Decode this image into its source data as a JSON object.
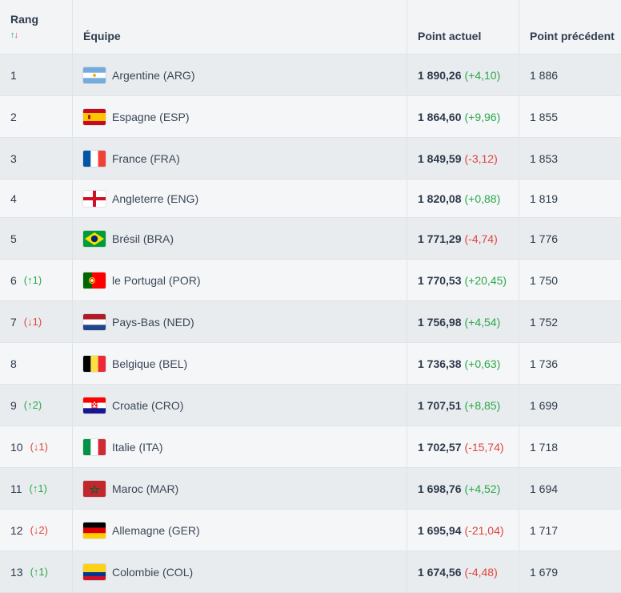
{
  "header": {
    "rank": "Rang",
    "sort_up": "↑",
    "sort_down": "↓",
    "team": "Équipe",
    "current": "Point actuel",
    "previous": "Point précédent"
  },
  "rows": [
    {
      "rank": "1",
      "move": "",
      "dir": "",
      "team": "Argentine (ARG)",
      "flag": "argentina-flag-icon",
      "points": "1 890,26",
      "delta": "(+4,10)",
      "sign": "pos",
      "prev": "1 886"
    },
    {
      "rank": "2",
      "move": "",
      "dir": "",
      "team": "Espagne (ESP)",
      "flag": "spain-flag-icon",
      "points": "1 864,60",
      "delta": "(+9,96)",
      "sign": "pos",
      "prev": "1 855"
    },
    {
      "rank": "3",
      "move": "",
      "dir": "",
      "team": "France (FRA)",
      "flag": "france-flag-icon",
      "points": "1 849,59",
      "delta": "(-3,12)",
      "sign": "neg",
      "prev": "1 853"
    },
    {
      "rank": "4",
      "move": "",
      "dir": "",
      "team": "Angleterre (ENG)",
      "flag": "england-flag-icon",
      "points": "1 820,08",
      "delta": "(+0,88)",
      "sign": "pos",
      "prev": "1 819"
    },
    {
      "rank": "5",
      "move": "",
      "dir": "",
      "team": "Brésil (BRA)",
      "flag": "brazil-flag-icon",
      "points": "1 771,29",
      "delta": "(-4,74)",
      "sign": "neg",
      "prev": "1 776"
    },
    {
      "rank": "6",
      "move": "(↑1)",
      "dir": "up",
      "team": "le Portugal (POR)",
      "flag": "portugal-flag-icon",
      "points": "1 770,53",
      "delta": "(+20,45)",
      "sign": "pos",
      "prev": "1 750"
    },
    {
      "rank": "7",
      "move": "(↓1)",
      "dir": "down",
      "team": "Pays-Bas (NED)",
      "flag": "netherlands-flag-icon",
      "points": "1 756,98",
      "delta": "(+4,54)",
      "sign": "pos",
      "prev": "1 752"
    },
    {
      "rank": "8",
      "move": "",
      "dir": "",
      "team": "Belgique (BEL)",
      "flag": "belgium-flag-icon",
      "points": "1 736,38",
      "delta": "(+0,63)",
      "sign": "pos",
      "prev": "1 736"
    },
    {
      "rank": "9",
      "move": "(↑2)",
      "dir": "up",
      "team": "Croatie (CRO)",
      "flag": "croatia-flag-icon",
      "points": "1 707,51",
      "delta": "(+8,85)",
      "sign": "pos",
      "prev": "1 699"
    },
    {
      "rank": "10",
      "move": "(↓1)",
      "dir": "down",
      "team": "Italie (ITA)",
      "flag": "italy-flag-icon",
      "points": "1 702,57",
      "delta": "(-15,74)",
      "sign": "neg",
      "prev": "1 718"
    },
    {
      "rank": "11",
      "move": "(↑1)",
      "dir": "up",
      "team": "Maroc (MAR)",
      "flag": "morocco-flag-icon",
      "points": "1 698,76",
      "delta": "(+4,52)",
      "sign": "pos",
      "prev": "1 694"
    },
    {
      "rank": "12",
      "move": "(↓2)",
      "dir": "down",
      "team": "Allemagne (GER)",
      "flag": "germany-flag-icon",
      "points": "1 695,94",
      "delta": "(-21,04)",
      "sign": "neg",
      "prev": "1 717"
    },
    {
      "rank": "13",
      "move": "(↑1)",
      "dir": "up",
      "team": "Colombie (COL)",
      "flag": "colombia-flag-icon",
      "points": "1 674,56",
      "delta": "(-4,48)",
      "sign": "neg",
      "prev": "1 679"
    }
  ],
  "colors": {
    "positive": "#2aa84a",
    "negative": "#e0443c"
  }
}
